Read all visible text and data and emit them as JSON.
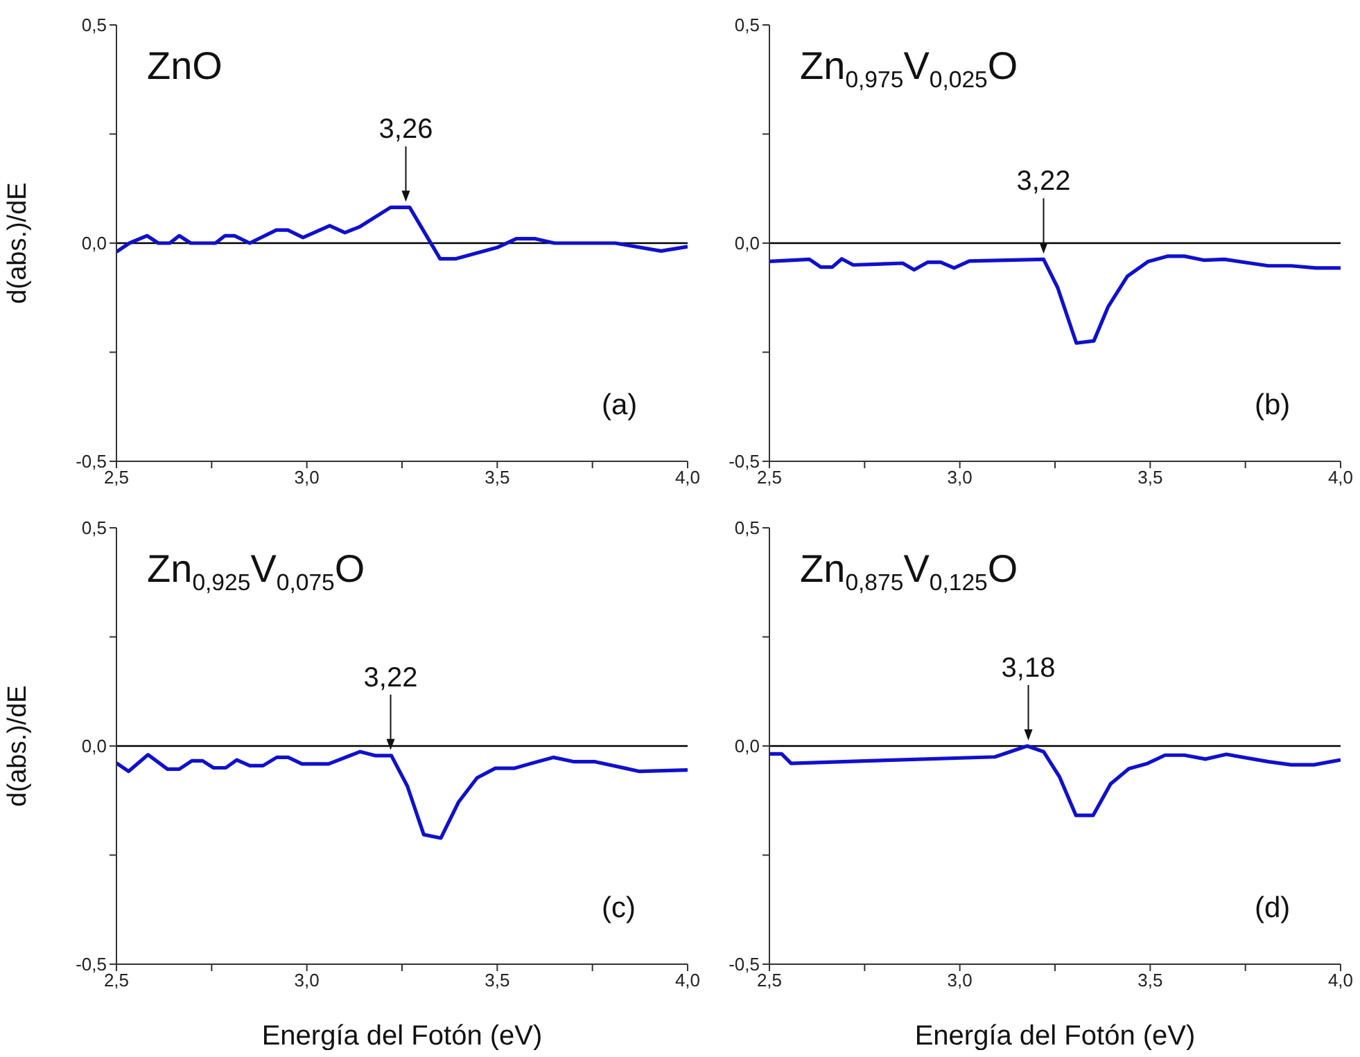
{
  "chart_data": [
    {
      "type": "line",
      "ylabel": "d(abs.)/dE",
      "color": "#1010cc",
      "marker": "none",
      "x": [
        2.5,
        2.534,
        2.58,
        2.61,
        2.64,
        2.665,
        2.695,
        2.76,
        2.785,
        2.81,
        2.85,
        2.92,
        2.95,
        2.99,
        3.06,
        3.1,
        3.14,
        3.22,
        3.27,
        3.35,
        3.39,
        3.5,
        3.55,
        3.6,
        3.65,
        3.81,
        3.93,
        4.0
      ],
      "values": [
        -0.02,
        0,
        0.017,
        0,
        0,
        0.017,
        0,
        0,
        0.017,
        0.017,
        0,
        0.03,
        0.03,
        0.013,
        0.04,
        0.024,
        0.038,
        0.082,
        0.082,
        -0.036,
        -0.036,
        -0.01,
        0.01,
        0.01,
        0,
        0,
        -0.018,
        -0.008
      ],
      "xlim": [
        2.5,
        4.0
      ],
      "xticks": [
        {
          "value": 2.5,
          "label": "2,5"
        },
        {
          "value": 2.75,
          "label": null
        },
        {
          "value": 3.0,
          "label": "3,0"
        },
        {
          "value": 3.25,
          "label": null
        },
        {
          "value": 3.5,
          "label": "3,5"
        },
        {
          "value": 3.75,
          "label": null
        },
        {
          "value": 4.0,
          "label": "4,0"
        }
      ],
      "ylim": [
        -0.5,
        0.5
      ],
      "yticks": [
        {
          "value": -0.5,
          "label": "-0,5"
        },
        {
          "value": -0.25,
          "label": null
        },
        {
          "value": 0,
          "label": "0,0"
        },
        {
          "value": 0.25,
          "label": null
        },
        {
          "value": 0.5,
          "label": "0,5"
        }
      ],
      "ref_lines": [
        {
          "axis": "y",
          "value": 0,
          "color": "#000000"
        }
      ],
      "annotations": [
        "ZnO",
        {
          "text": "3,26",
          "x": 3.26,
          "y": 0.082
        },
        "(a)"
      ]
    },
    {
      "type": "line",
      "color": "#1010cc",
      "marker": "none",
      "x": [
        2.5,
        2.605,
        2.635,
        2.665,
        2.69,
        2.72,
        2.85,
        2.88,
        2.915,
        2.95,
        2.985,
        3.025,
        3.22,
        3.257,
        3.306,
        3.352,
        3.39,
        3.44,
        3.495,
        3.545,
        3.59,
        3.64,
        3.695,
        3.81,
        3.87,
        3.935,
        4.0
      ],
      "values": [
        -0.042,
        -0.037,
        -0.055,
        -0.055,
        -0.036,
        -0.05,
        -0.046,
        -0.061,
        -0.044,
        -0.044,
        -0.057,
        -0.041,
        -0.037,
        -0.102,
        -0.229,
        -0.224,
        -0.145,
        -0.076,
        -0.042,
        -0.03,
        -0.03,
        -0.039,
        -0.037,
        -0.052,
        -0.052,
        -0.057,
        -0.057
      ],
      "xlim": [
        2.5,
        4.0
      ],
      "xticks": [
        {
          "value": 2.5,
          "label": "2,5"
        },
        {
          "value": 2.75,
          "label": null
        },
        {
          "value": 3.0,
          "label": "3,0"
        },
        {
          "value": 3.25,
          "label": null
        },
        {
          "value": 3.5,
          "label": "3,5"
        },
        {
          "value": 3.75,
          "label": null
        },
        {
          "value": 4.0,
          "label": "4,0"
        }
      ],
      "ylim": [
        -0.5,
        0.5
      ],
      "yticks": [
        {
          "value": -0.5,
          "label": "-0,5"
        },
        {
          "value": -0.25,
          "label": null
        },
        {
          "value": 0,
          "label": "0,0"
        },
        {
          "value": 0.25,
          "label": null
        },
        {
          "value": 0.5,
          "label": "0,5"
        }
      ],
      "ref_lines": [
        {
          "axis": "y",
          "value": 0,
          "color": "#000000"
        }
      ],
      "annotations": [
        "Zn$_{0,975}$V$_{0,025}$O",
        {
          "text": "3,22",
          "x": 3.22,
          "y": -0.037
        },
        "(b)"
      ]
    },
    {
      "type": "line",
      "ylabel": "d(abs.)/dE",
      "xlabel": "Energía del Fotón (eV)",
      "color": "#1010cc",
      "marker": "none",
      "x": [
        2.5,
        2.532,
        2.583,
        2.634,
        2.665,
        2.698,
        2.726,
        2.755,
        2.787,
        2.816,
        2.85,
        2.885,
        2.921,
        2.951,
        2.987,
        3.057,
        3.14,
        3.179,
        3.222,
        3.264,
        3.307,
        3.352,
        3.398,
        3.447,
        3.495,
        3.544,
        3.647,
        3.702,
        3.757,
        3.836,
        3.872,
        4.0
      ],
      "values": [
        -0.039,
        -0.058,
        -0.02,
        -0.053,
        -0.053,
        -0.034,
        -0.034,
        -0.05,
        -0.05,
        -0.032,
        -0.045,
        -0.045,
        -0.026,
        -0.026,
        -0.041,
        -0.041,
        -0.013,
        -0.022,
        -0.022,
        -0.092,
        -0.203,
        -0.211,
        -0.129,
        -0.073,
        -0.051,
        -0.051,
        -0.026,
        -0.036,
        -0.036,
        -0.051,
        -0.058,
        -0.055
      ],
      "xlim": [
        2.5,
        4.0
      ],
      "xticks": [
        {
          "value": 2.5,
          "label": "2,5"
        },
        {
          "value": 2.75,
          "label": null
        },
        {
          "value": 3.0,
          "label": "3,0"
        },
        {
          "value": 3.25,
          "label": null
        },
        {
          "value": 3.5,
          "label": "3,5"
        },
        {
          "value": 3.75,
          "label": null
        },
        {
          "value": 4.0,
          "label": "4,0"
        }
      ],
      "ylim": [
        -0.5,
        0.5
      ],
      "yticks": [
        {
          "value": -0.5,
          "label": "-0,5"
        },
        {
          "value": -0.25,
          "label": null
        },
        {
          "value": 0,
          "label": "0,0"
        },
        {
          "value": 0.25,
          "label": null
        },
        {
          "value": 0.5,
          "label": "0,5"
        }
      ],
      "ref_lines": [
        {
          "axis": "y",
          "value": 0,
          "color": "#000000"
        }
      ],
      "annotations": [
        "Zn$_{0,925}$V$_{0,075}$O",
        {
          "text": "3,22",
          "x": 3.22,
          "y": -0.022
        },
        "(c)"
      ]
    },
    {
      "type": "line",
      "xlabel": "Energía del Fotón (eV)",
      "color": "#1010cc",
      "marker": "none",
      "x": [
        2.5,
        2.532,
        2.557,
        2.763,
        3.092,
        3.177,
        3.22,
        3.262,
        3.305,
        3.35,
        3.396,
        3.444,
        3.493,
        3.539,
        3.59,
        3.645,
        3.7,
        3.81,
        3.87,
        3.93,
        4.0
      ],
      "values": [
        -0.018,
        -0.018,
        -0.04,
        -0.034,
        -0.025,
        0,
        -0.013,
        -0.071,
        -0.159,
        -0.159,
        -0.087,
        -0.052,
        -0.04,
        -0.021,
        -0.021,
        -0.03,
        -0.019,
        -0.036,
        -0.043,
        -0.043,
        -0.032
      ],
      "xlim": [
        2.5,
        4.0
      ],
      "xticks": [
        {
          "value": 2.5,
          "label": "2,5"
        },
        {
          "value": 2.75,
          "label": null
        },
        {
          "value": 3.0,
          "label": "3,0"
        },
        {
          "value": 3.25,
          "label": null
        },
        {
          "value": 3.5,
          "label": "3,5"
        },
        {
          "value": 3.75,
          "label": null
        },
        {
          "value": 4.0,
          "label": "4,0"
        }
      ],
      "ylim": [
        -0.5,
        0.5
      ],
      "yticks": [
        {
          "value": -0.5,
          "label": "-0,5"
        },
        {
          "value": -0.25,
          "label": null
        },
        {
          "value": 0,
          "label": "0,0"
        },
        {
          "value": 0.25,
          "label": null
        },
        {
          "value": 0.5,
          "label": "0,5"
        }
      ],
      "ref_lines": [
        {
          "axis": "y",
          "value": 0,
          "color": "#000000"
        }
      ],
      "annotations": [
        "Zn$_{0,875}$V$_{0,125}$O",
        {
          "text": "3,18",
          "x": 3.18,
          "y": 0
        },
        "(d)"
      ]
    }
  ]
}
